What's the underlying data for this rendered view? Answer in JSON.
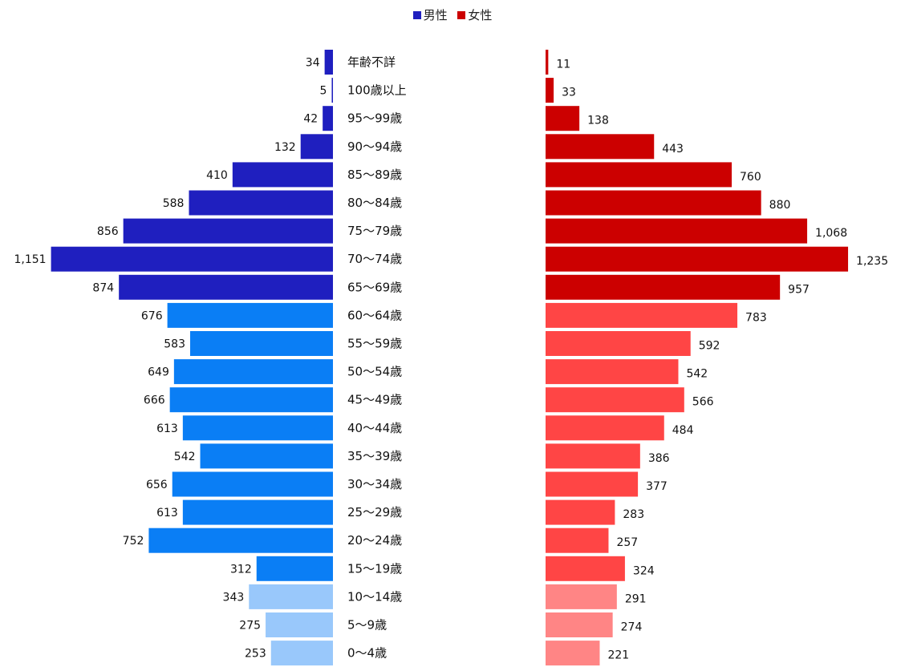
{
  "chart_data": {
    "type": "bar",
    "orientation": "horizontal",
    "layout": "population-pyramid",
    "categories": [
      "年齢不詳",
      "100歳以上",
      "95〜99歳",
      "90〜94歳",
      "85〜89歳",
      "80〜84歳",
      "75〜79歳",
      "70〜74歳",
      "65〜69歳",
      "60〜64歳",
      "55〜59歳",
      "50〜54歳",
      "45〜49歳",
      "40〜44歳",
      "35〜39歳",
      "30〜34歳",
      "25〜29歳",
      "20〜24歳",
      "15〜19歳",
      "10〜14歳",
      "5〜9歳",
      "0〜4歳"
    ],
    "series": [
      {
        "name": "男性",
        "color": "#1f1fbf",
        "values": [
          34,
          5,
          42,
          132,
          410,
          588,
          856,
          1151,
          874,
          676,
          583,
          649,
          666,
          613,
          542,
          656,
          613,
          752,
          312,
          343,
          275,
          253
        ],
        "labels": [
          "34",
          "5",
          "42",
          "132",
          "410",
          "588",
          "856",
          "1,151",
          "874",
          "676",
          "583",
          "649",
          "666",
          "613",
          "542",
          "656",
          "613",
          "752",
          "312",
          "343",
          "275",
          "253"
        ]
      },
      {
        "name": "女性",
        "color": "#cc0000",
        "values": [
          11,
          33,
          138,
          443,
          760,
          880,
          1068,
          1235,
          957,
          783,
          592,
          542,
          566,
          484,
          386,
          377,
          283,
          257,
          324,
          291,
          274,
          221
        ],
        "labels": [
          "11",
          "33",
          "138",
          "443",
          "760",
          "880",
          "1,068",
          "1,235",
          "957",
          "783",
          "592",
          "542",
          "566",
          "484",
          "386",
          "377",
          "283",
          "257",
          "324",
          "291",
          "274",
          "221"
        ]
      }
    ],
    "band_colors": {
      "male": {
        "elderly": "#1f1fbf",
        "working": "#0a7ef5",
        "child": "#99c8fb"
      },
      "female": {
        "elderly": "#cc0000",
        "working": "#ff4545",
        "child": "#ff8585"
      }
    },
    "legend_position": "top-center",
    "grid": false
  }
}
